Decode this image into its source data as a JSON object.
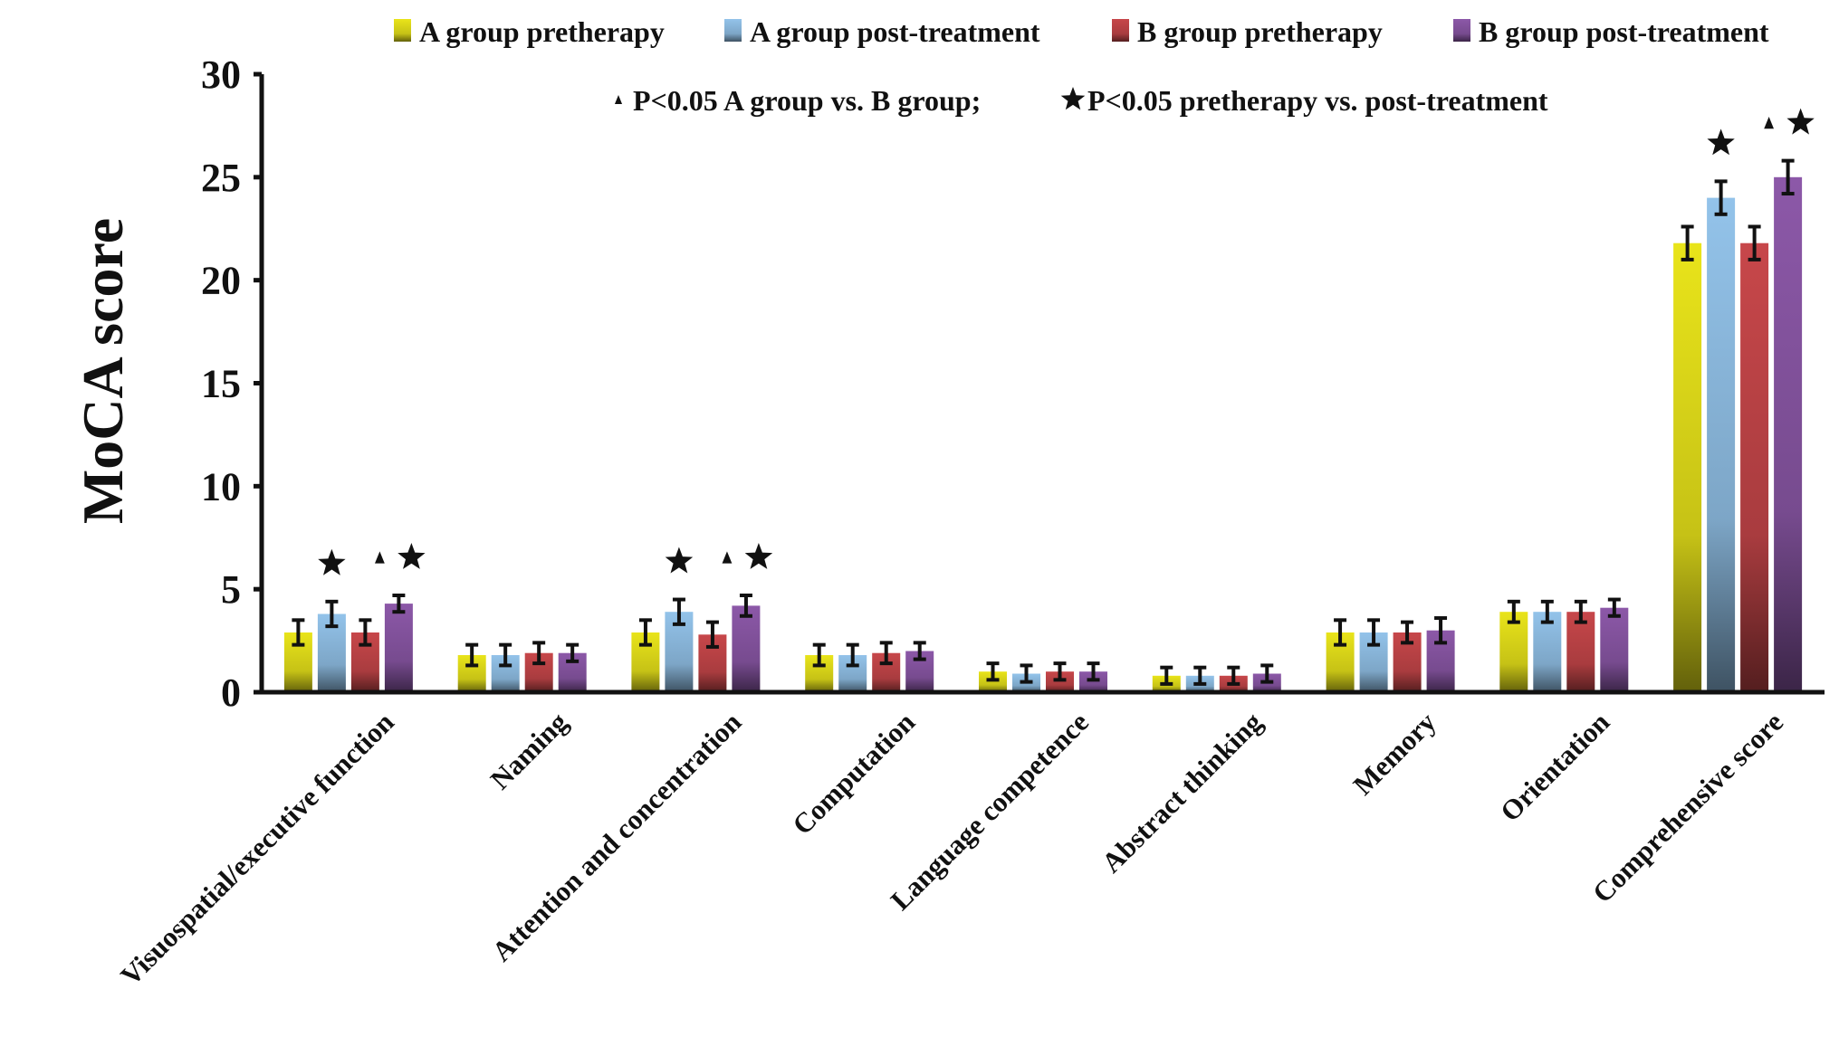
{
  "chart_data": {
    "type": "bar",
    "title": "",
    "xlabel": "",
    "ylabel": "MoCA score",
    "ylim": [
      0,
      30
    ],
    "yticks": [
      0,
      5,
      10,
      15,
      20,
      25,
      30
    ],
    "grid": false,
    "legend_position": "top",
    "categories": [
      "Visuospatial/executive function",
      "Naming",
      "Attention and concentration",
      "Computation",
      "Language competence",
      "Abstract thinking",
      "Memory",
      "Orientation",
      "Comprehensive score"
    ],
    "series": [
      {
        "name": "A group pretherapy",
        "color": "#e9e41a",
        "values": [
          2.9,
          1.8,
          2.9,
          1.8,
          1.0,
          0.8,
          2.9,
          3.9,
          21.8
        ],
        "errors": [
          0.6,
          0.5,
          0.6,
          0.5,
          0.4,
          0.4,
          0.6,
          0.5,
          0.8
        ]
      },
      {
        "name": "A group post-treatment",
        "color": "#93c3ea",
        "values": [
          3.8,
          1.8,
          3.9,
          1.8,
          0.9,
          0.8,
          2.9,
          3.9,
          24.0
        ],
        "errors": [
          0.6,
          0.5,
          0.6,
          0.5,
          0.4,
          0.4,
          0.6,
          0.5,
          0.8
        ]
      },
      {
        "name": "B group pretherapy",
        "color": "#c7474a",
        "values": [
          2.9,
          1.9,
          2.8,
          1.9,
          1.0,
          0.8,
          2.9,
          3.9,
          21.8
        ],
        "errors": [
          0.6,
          0.5,
          0.6,
          0.5,
          0.4,
          0.4,
          0.5,
          0.5,
          0.8
        ]
      },
      {
        "name": "B group post-treatment",
        "color": "#8c58a8",
        "values": [
          4.3,
          1.9,
          4.2,
          2.0,
          1.0,
          0.9,
          3.0,
          4.1,
          25.0
        ],
        "errors": [
          0.4,
          0.4,
          0.5,
          0.4,
          0.4,
          0.4,
          0.6,
          0.4,
          0.8
        ]
      }
    ],
    "annotations": {
      "legend_note": [
        {
          "symbol": "triangle",
          "text": "P<0.05 A group vs. B group;"
        },
        {
          "symbol": "star",
          "text": "P<0.05 pretherapy vs. post-treatment"
        }
      ],
      "significance_marks": [
        {
          "category": 0,
          "series": 1,
          "symbols": [
            "star"
          ]
        },
        {
          "category": 0,
          "series": 3,
          "symbols": [
            "triangle",
            "star"
          ]
        },
        {
          "category": 2,
          "series": 1,
          "symbols": [
            "star"
          ]
        },
        {
          "category": 2,
          "series": 3,
          "symbols": [
            "triangle",
            "star"
          ]
        },
        {
          "category": 8,
          "series": 1,
          "symbols": [
            "star"
          ]
        },
        {
          "category": 8,
          "series": 3,
          "symbols": [
            "triangle",
            "star"
          ]
        }
      ]
    }
  }
}
